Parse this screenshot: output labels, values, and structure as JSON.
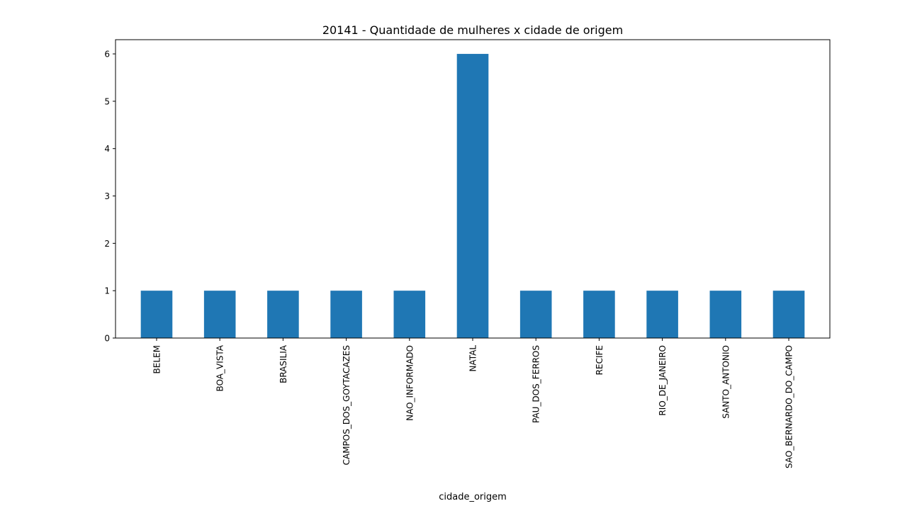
{
  "chart_data": {
    "type": "bar",
    "title": "20141 - Quantidade de mulheres x cidade de origem",
    "xlabel": "cidade_origem",
    "ylabel": "",
    "categories": [
      "BELEM",
      "BOA_VISTA",
      "BRASILIA",
      "CAMPOS_DOS_GOYTACAZES",
      "NAO_INFORMADO",
      "NATAL",
      "PAU_DOS_FERROS",
      "RECIFE",
      "RIO_DE_JANEIRO",
      "SANTO_ANTONIO",
      "SAO_BERNARDO_DO_CAMPO"
    ],
    "values": [
      1,
      1,
      1,
      1,
      1,
      6,
      1,
      1,
      1,
      1,
      1
    ],
    "ylim": [
      0,
      6.3
    ],
    "yticks": [
      "0",
      "1",
      "2",
      "3",
      "4",
      "5",
      "6"
    ],
    "bar_color": "#1f77b4",
    "grid": false,
    "legend": "none"
  }
}
